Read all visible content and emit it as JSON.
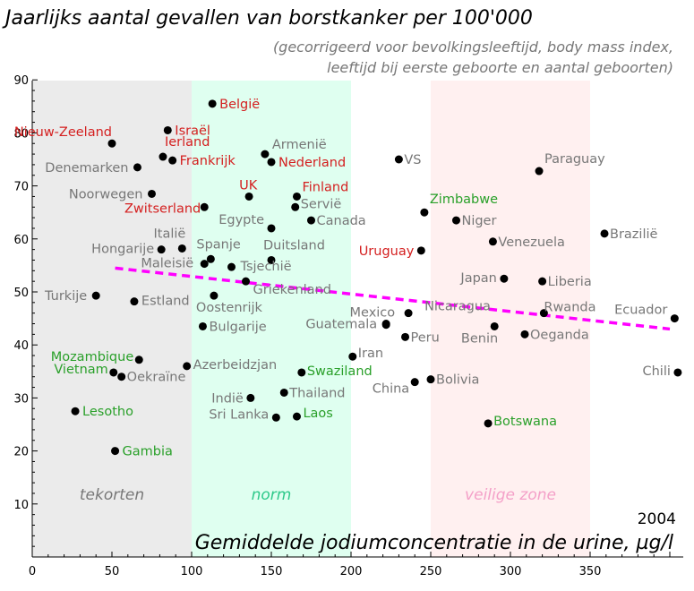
{
  "chart_data": {
    "type": "scatter",
    "title": "Jaarlijks aantal gevallen van borstkanker per 100'000",
    "subtitle_lines": [
      "(gecorrigeerd voor bevolkingsleeftijd, body mass index,",
      "leeftijd bij eerste geboorte en aantal geboorten)"
    ],
    "xlabel": "Gemiddelde jodiumconcentratie in de urine, µg/l",
    "ylabel": "",
    "year": "2004",
    "xlim": [
      0,
      410
    ],
    "ylim": [
      0,
      92
    ],
    "x_ticks": [
      0,
      50,
      100,
      150,
      200,
      250,
      300,
      350
    ],
    "y_ticks": [
      10,
      20,
      30,
      40,
      50,
      60,
      70,
      80,
      90
    ],
    "zones": [
      {
        "label": "tekorten",
        "x0": 0,
        "x1": 100,
        "fill": "#ebebeb",
        "text_color": "#777777"
      },
      {
        "label": "norm",
        "x0": 100,
        "x1": 200,
        "fill": "#dffff0",
        "text_color": "#2ec98a"
      },
      {
        "label": "veilige zone",
        "x0": 250,
        "x1": 350,
        "fill": "#fff0f0",
        "text_color": "#f4a0c8"
      }
    ],
    "trend": {
      "x": [
        52,
        400
      ],
      "y": [
        54.5,
        43
      ],
      "color": "#ff00ff"
    },
    "colors": {
      "gray": "#777777",
      "red": "#d42020",
      "green": "#2aa02a"
    },
    "points": [
      {
        "name": "België",
        "x": 113,
        "y": 85.5,
        "color": "red",
        "anchor": "start",
        "dx": 8,
        "dy": 5
      },
      {
        "name": "Israël",
        "x": 85,
        "y": 80.5,
        "color": "red",
        "anchor": "start",
        "dx": 8,
        "dy": 5
      },
      {
        "name": "Nieuw-Zeeland",
        "x": 50,
        "y": 78,
        "color": "red",
        "anchor": "end",
        "dx": 0,
        "dy": -8
      },
      {
        "name": "Ierland",
        "x": 82,
        "y": 75.5,
        "color": "red",
        "anchor": "start",
        "dx": 2,
        "dy": -12
      },
      {
        "name": "Frankrijk",
        "x": 88,
        "y": 74.8,
        "color": "red",
        "anchor": "start",
        "dx": 8,
        "dy": 5
      },
      {
        "name": "Denemarken",
        "x": 66,
        "y": 73.5,
        "color": "gray",
        "anchor": "end",
        "dx": -10,
        "dy": 5
      },
      {
        "name": "Armenië",
        "x": 146,
        "y": 76,
        "color": "gray",
        "anchor": "start",
        "dx": 8,
        "dy": -6
      },
      {
        "name": "Nederland",
        "x": 150,
        "y": 74.5,
        "color": "red",
        "anchor": "start",
        "dx": 8,
        "dy": 5
      },
      {
        "name": "VS",
        "x": 230,
        "y": 75,
        "color": "gray",
        "anchor": "start",
        "dx": 6,
        "dy": 5
      },
      {
        "name": "Paraguay",
        "x": 318,
        "y": 72.8,
        "color": "gray",
        "anchor": "start",
        "dx": 6,
        "dy": -9
      },
      {
        "name": "Noorwegen",
        "x": 75,
        "y": 68.5,
        "color": "gray",
        "anchor": "end",
        "dx": -10,
        "dy": 5
      },
      {
        "name": "UK",
        "x": 136,
        "y": 68,
        "color": "red",
        "anchor": "start",
        "dx": -11,
        "dy": -8
      },
      {
        "name": "Finland",
        "x": 166,
        "y": 68,
        "color": "red",
        "anchor": "start",
        "dx": 6,
        "dy": -6
      },
      {
        "name": "Zwitserland",
        "x": 108,
        "y": 66,
        "color": "red",
        "anchor": "end",
        "dx": -4,
        "dy": 6
      },
      {
        "name": "Servië",
        "x": 165,
        "y": 66,
        "color": "gray",
        "anchor": "start",
        "dx": 6,
        "dy": 1
      },
      {
        "name": "Zimbabwe",
        "x": 246,
        "y": 65,
        "color": "green",
        "anchor": "start",
        "dx": 6,
        "dy": -10
      },
      {
        "name": "Canada",
        "x": 175,
        "y": 63.5,
        "color": "gray",
        "anchor": "start",
        "dx": 6,
        "dy": 5
      },
      {
        "name": "Niger",
        "x": 266,
        "y": 63.5,
        "color": "gray",
        "anchor": "start",
        "dx": 6,
        "dy": 5
      },
      {
        "name": "Egypte",
        "x": 150,
        "y": 62,
        "color": "gray",
        "anchor": "end",
        "dx": -8,
        "dy": -5
      },
      {
        "name": "Brazilië",
        "x": 359,
        "y": 61,
        "color": "gray",
        "anchor": "start",
        "dx": 6,
        "dy": 5
      },
      {
        "name": "Venezuela",
        "x": 289,
        "y": 59.5,
        "color": "gray",
        "anchor": "start",
        "dx": 6,
        "dy": 5
      },
      {
        "name": "Italië",
        "x": 94,
        "y": 58.2,
        "color": "gray",
        "anchor": "end",
        "dx": 4,
        "dy": -12
      },
      {
        "name": "Hongarije",
        "x": 81,
        "y": 58,
        "color": "gray",
        "anchor": "end",
        "dx": -8,
        "dy": 4
      },
      {
        "name": "Uruguay",
        "x": 244,
        "y": 57.8,
        "color": "red",
        "anchor": "end",
        "dx": -8,
        "dy": 5
      },
      {
        "name": "Spanje",
        "x": 112,
        "y": 56.2,
        "color": "gray",
        "anchor": "start",
        "dx": -16,
        "dy": -12
      },
      {
        "name": "Duitsland",
        "x": 150,
        "y": 56,
        "color": "gray",
        "anchor": "start",
        "dx": -9,
        "dy": -12
      },
      {
        "name": "Maleisië",
        "x": 108,
        "y": 55.3,
        "color": "gray",
        "anchor": "end",
        "dx": -12,
        "dy": 4
      },
      {
        "name": "Tsjechië",
        "x": 125,
        "y": 54.7,
        "color": "gray",
        "anchor": "start",
        "dx": 10,
        "dy": 4
      },
      {
        "name": "Japan",
        "x": 296,
        "y": 52.5,
        "color": "gray",
        "anchor": "end",
        "dx": -8,
        "dy": 4
      },
      {
        "name": "Liberia",
        "x": 320,
        "y": 52,
        "color": "gray",
        "anchor": "start",
        "dx": 6,
        "dy": 5
      },
      {
        "name": "Griekenland",
        "x": 134,
        "y": 52,
        "color": "gray",
        "anchor": "start",
        "dx": 8,
        "dy": 14
      },
      {
        "name": "Turkije",
        "x": 40,
        "y": 49.3,
        "color": "gray",
        "anchor": "end",
        "dx": -10,
        "dy": 5
      },
      {
        "name": "Oostenrijk",
        "x": 114,
        "y": 49.3,
        "color": "gray",
        "anchor": "start",
        "dx": -20,
        "dy": 18
      },
      {
        "name": "Estland",
        "x": 64,
        "y": 48.2,
        "color": "gray",
        "anchor": "start",
        "dx": 8,
        "dy": 4
      },
      {
        "name": "Rwanda",
        "x": 321,
        "y": 46,
        "color": "gray",
        "anchor": "start",
        "dx": 0,
        "dy": -2
      },
      {
        "name": "Nicaragua",
        "x": 236,
        "y": 46,
        "color": "gray",
        "anchor": "start",
        "dx": 18,
        "dy": -3
      },
      {
        "name": "Ecuador",
        "x": 403,
        "y": 45,
        "color": "gray",
        "anchor": "end",
        "dx": -8,
        "dy": -5
      },
      {
        "name": "Mexico",
        "x": 222,
        "y": 44,
        "color": "gray",
        "anchor": "end",
        "dx": 10,
        "dy": -8
      },
      {
        "name": "Guatemala",
        "x": 222,
        "y": 43.8,
        "color": "gray",
        "anchor": "end",
        "dx": -10,
        "dy": 4
      },
      {
        "name": "Bulgarije",
        "x": 107,
        "y": 43.5,
        "color": "gray",
        "anchor": "start",
        "dx": 7,
        "dy": 5
      },
      {
        "name": "Benin",
        "x": 290,
        "y": 43.5,
        "color": "gray",
        "anchor": "end",
        "dx": 4,
        "dy": 18
      },
      {
        "name": "Oeganda",
        "x": 309,
        "y": 42,
        "color": "gray",
        "anchor": "start",
        "dx": 6,
        "dy": 5
      },
      {
        "name": "Peru",
        "x": 234,
        "y": 41.5,
        "color": "gray",
        "anchor": "start",
        "dx": 6,
        "dy": 5
      },
      {
        "name": "Iran",
        "x": 201,
        "y": 37.8,
        "color": "gray",
        "anchor": "start",
        "dx": 6,
        "dy": 1
      },
      {
        "name": "Mozambique",
        "x": 67,
        "y": 37.2,
        "color": "green",
        "anchor": "end",
        "dx": -6,
        "dy": 1
      },
      {
        "name": "Azerbeidzjan",
        "x": 97,
        "y": 36,
        "color": "gray",
        "anchor": "start",
        "dx": 7,
        "dy": 3
      },
      {
        "name": "Vietnam",
        "x": 51,
        "y": 34.8,
        "color": "green",
        "anchor": "end",
        "dx": -6,
        "dy": 1
      },
      {
        "name": "Swaziland",
        "x": 169,
        "y": 34.8,
        "color": "green",
        "anchor": "start",
        "dx": 6,
        "dy": 3
      },
      {
        "name": "Chili",
        "x": 405,
        "y": 34.8,
        "color": "gray",
        "anchor": "end",
        "dx": -8,
        "dy": 3
      },
      {
        "name": "Oekraïne",
        "x": 56,
        "y": 34,
        "color": "gray",
        "anchor": "start",
        "dx": 6,
        "dy": 5
      },
      {
        "name": "Bolivia",
        "x": 250,
        "y": 33.5,
        "color": "gray",
        "anchor": "start",
        "dx": 6,
        "dy": 5
      },
      {
        "name": "China",
        "x": 240,
        "y": 33,
        "color": "gray",
        "anchor": "end",
        "dx": -6,
        "dy": 12
      },
      {
        "name": "Thailand",
        "x": 158,
        "y": 31,
        "color": "gray",
        "anchor": "start",
        "dx": 6,
        "dy": 5
      },
      {
        "name": "Indië",
        "x": 137,
        "y": 30,
        "color": "gray",
        "anchor": "end",
        "dx": -8,
        "dy": 5
      },
      {
        "name": "Lesotho",
        "x": 27,
        "y": 27.5,
        "color": "green",
        "anchor": "start",
        "dx": 8,
        "dy": 5
      },
      {
        "name": "Sri Lanka",
        "x": 153,
        "y": 26.3,
        "color": "gray",
        "anchor": "end",
        "dx": -8,
        "dy": 1
      },
      {
        "name": "Laos",
        "x": 166,
        "y": 26.5,
        "color": "green",
        "anchor": "start",
        "dx": 7,
        "dy": 1
      },
      {
        "name": "Botswana",
        "x": 286,
        "y": 25.2,
        "color": "green",
        "anchor": "start",
        "dx": 6,
        "dy": 2
      },
      {
        "name": "Gambia",
        "x": 52,
        "y": 20,
        "color": "green",
        "anchor": "start",
        "dx": 8,
        "dy": 5
      }
    ]
  }
}
